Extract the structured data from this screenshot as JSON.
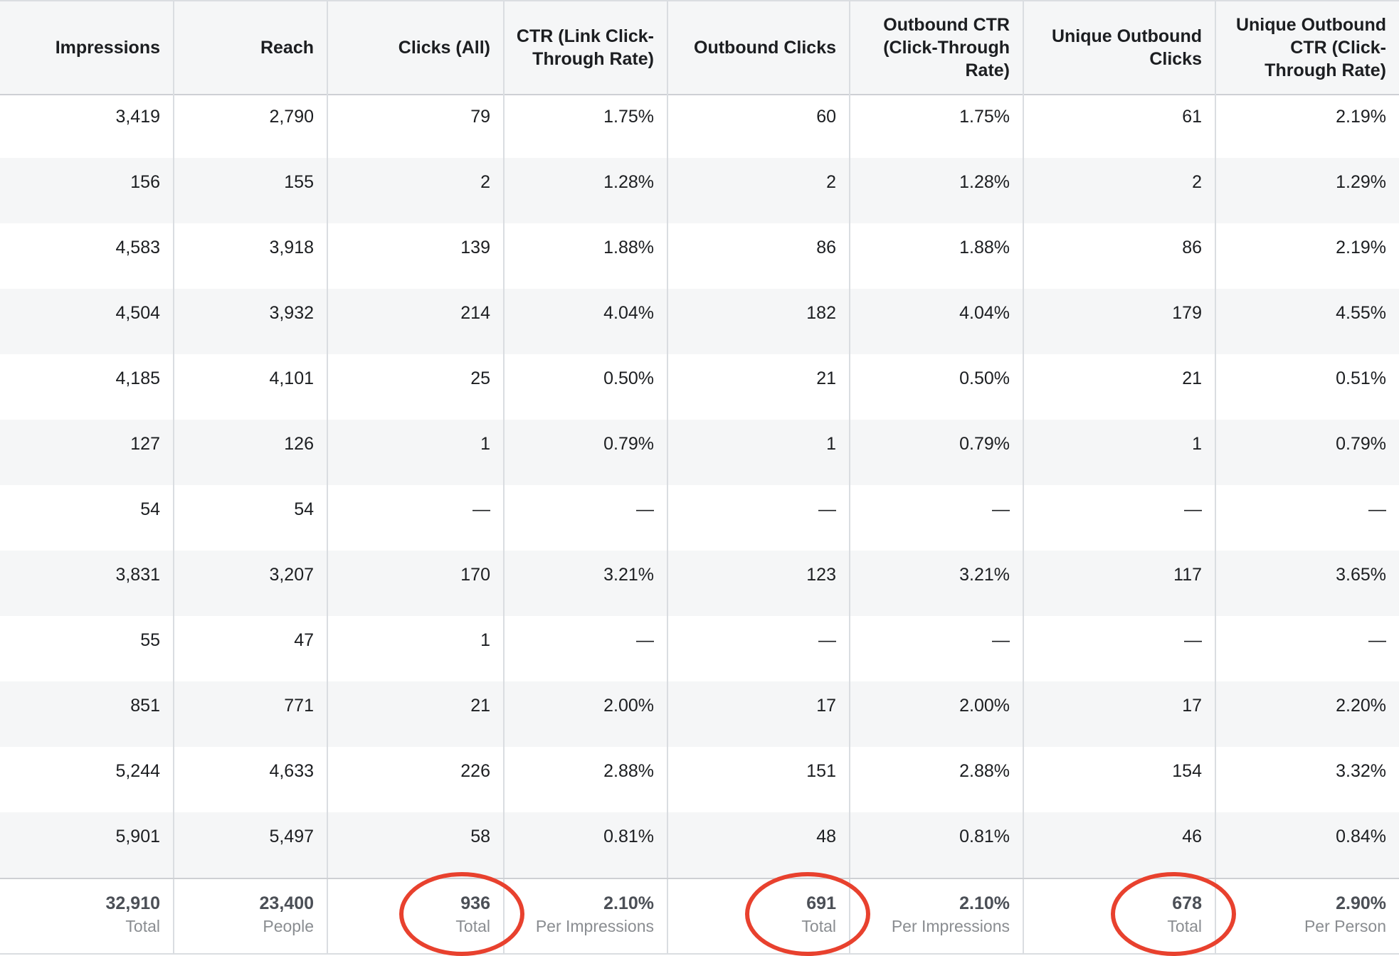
{
  "table": {
    "headers": [
      [
        "Impressions"
      ],
      [
        "Reach"
      ],
      [
        "Clicks (All)"
      ],
      [
        "CTR (Link Click-",
        "Through Rate)"
      ],
      [
        "Outbound Clicks"
      ],
      [
        "Outbound CTR",
        "(Click-Through",
        "Rate)"
      ],
      [
        "Unique Outbound",
        "Clicks"
      ],
      [
        "Unique Outbound",
        "CTR (Click-",
        "Through Rate)"
      ]
    ],
    "rows": [
      [
        "3,419",
        "2,790",
        "79",
        "1.75%",
        "60",
        "1.75%",
        "61",
        "2.19%"
      ],
      [
        "156",
        "155",
        "2",
        "1.28%",
        "2",
        "1.28%",
        "2",
        "1.29%"
      ],
      [
        "4,583",
        "3,918",
        "139",
        "1.88%",
        "86",
        "1.88%",
        "86",
        "2.19%"
      ],
      [
        "4,504",
        "3,932",
        "214",
        "4.04%",
        "182",
        "4.04%",
        "179",
        "4.55%"
      ],
      [
        "4,185",
        "4,101",
        "25",
        "0.50%",
        "21",
        "0.50%",
        "21",
        "0.51%"
      ],
      [
        "127",
        "126",
        "1",
        "0.79%",
        "1",
        "0.79%",
        "1",
        "0.79%"
      ],
      [
        "54",
        "54",
        "—",
        "—",
        "—",
        "—",
        "—",
        "—"
      ],
      [
        "3,831",
        "3,207",
        "170",
        "3.21%",
        "123",
        "3.21%",
        "117",
        "3.65%"
      ],
      [
        "55",
        "47",
        "1",
        "—",
        "—",
        "—",
        "—",
        "—"
      ],
      [
        "851",
        "771",
        "21",
        "2.00%",
        "17",
        "2.00%",
        "17",
        "2.20%"
      ],
      [
        "5,244",
        "4,633",
        "226",
        "2.88%",
        "151",
        "2.88%",
        "154",
        "3.32%"
      ],
      [
        "5,901",
        "5,497",
        "58",
        "0.81%",
        "48",
        "0.81%",
        "46",
        "0.84%"
      ]
    ],
    "totals": [
      {
        "value": "32,910",
        "label": "Total"
      },
      {
        "value": "23,400",
        "label": "People"
      },
      {
        "value": "936",
        "label": "Total"
      },
      {
        "value": "2.10%",
        "label": "Per Impressions"
      },
      {
        "value": "691",
        "label": "Total"
      },
      {
        "value": "2.10%",
        "label": "Per Impressions"
      },
      {
        "value": "678",
        "label": "Total"
      },
      {
        "value": "2.90%",
        "label": "Per Person"
      }
    ],
    "highlighted_columns": [
      2,
      4,
      6
    ]
  },
  "colors": {
    "highlight_ring": "#e8412e",
    "header_bg": "#f5f6f7",
    "alt_row_bg": "#f5f6f7",
    "border": "#dadde1"
  }
}
